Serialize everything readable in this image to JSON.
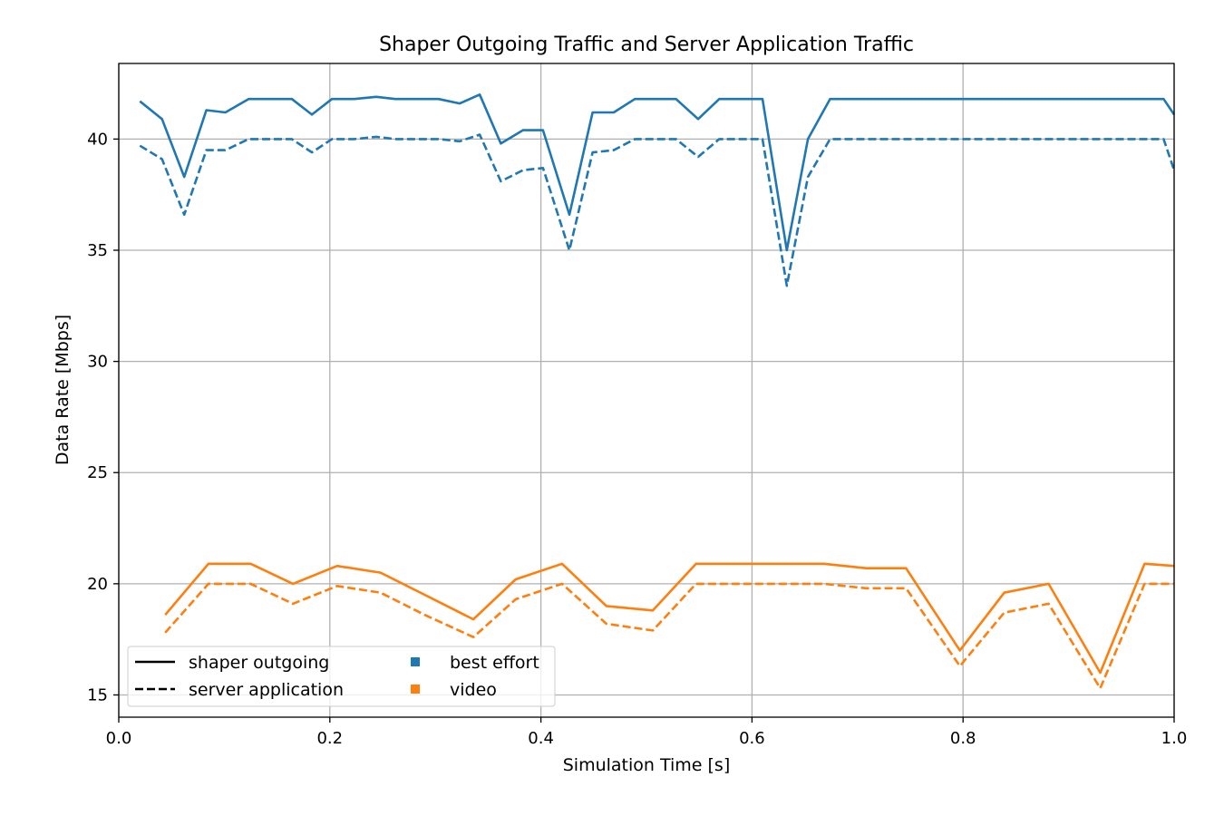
{
  "chart_data": {
    "type": "line",
    "title": "Shaper Outgoing Traffic and Server Application Traffic",
    "xlabel": "Simulation Time [s]",
    "ylabel": "Data Rate [Mbps]",
    "xlim": [
      0.0,
      1.0
    ],
    "ylim": [
      14.0,
      43.4
    ],
    "x_ticks": [
      0.0,
      0.2,
      0.4,
      0.6,
      0.8,
      1.0
    ],
    "x_tick_labels": [
      "0.0",
      "0.2",
      "0.4",
      "0.6",
      "0.8",
      "1.0"
    ],
    "y_ticks": [
      15,
      20,
      25,
      30,
      35,
      40
    ],
    "y_tick_labels": [
      "15",
      "20",
      "25",
      "30",
      "35",
      "40"
    ],
    "grid": true,
    "legend_placement": "lower-left",
    "legend": {
      "line_styles": [
        {
          "label": "shaper outgoing",
          "dash": "solid"
        },
        {
          "label": "server application",
          "dash": "dashed"
        }
      ],
      "categories": [
        {
          "label": "best effort",
          "color": "#1f77b4"
        },
        {
          "label": "video",
          "color": "#ff7f0e"
        }
      ]
    },
    "series": [
      {
        "category": "best effort",
        "style": "shaper outgoing",
        "color": "#1f77b4",
        "dash": "solid",
        "x": [
          0.02,
          0.041,
          0.062,
          0.083,
          0.101,
          0.123,
          0.145,
          0.164,
          0.183,
          0.202,
          0.223,
          0.244,
          0.262,
          0.282,
          0.303,
          0.323,
          0.342,
          0.362,
          0.383,
          0.402,
          0.427,
          0.449,
          0.469,
          0.489,
          0.508,
          0.528,
          0.549,
          0.569,
          0.589,
          0.61,
          0.633,
          0.653,
          0.674,
          0.7,
          0.75,
          0.8,
          0.815,
          0.84,
          0.9,
          0.95,
          0.99,
          1.0
        ],
        "y": [
          41.7,
          40.9,
          38.3,
          41.3,
          41.2,
          41.8,
          41.8,
          41.8,
          41.1,
          41.8,
          41.8,
          41.9,
          41.8,
          41.8,
          41.8,
          41.6,
          42.0,
          39.8,
          40.4,
          40.4,
          36.6,
          41.2,
          41.2,
          41.8,
          41.8,
          41.8,
          40.9,
          41.8,
          41.8,
          41.8,
          35.0,
          40.0,
          41.8,
          41.8,
          41.8,
          41.8,
          41.8,
          41.8,
          41.8,
          41.8,
          41.8,
          41.1
        ]
      },
      {
        "category": "best effort",
        "style": "server application",
        "color": "#1f77b4",
        "dash": "dashed",
        "x": [
          0.02,
          0.041,
          0.062,
          0.083,
          0.101,
          0.123,
          0.145,
          0.164,
          0.183,
          0.202,
          0.223,
          0.244,
          0.262,
          0.282,
          0.303,
          0.323,
          0.342,
          0.362,
          0.383,
          0.402,
          0.427,
          0.449,
          0.469,
          0.489,
          0.508,
          0.528,
          0.549,
          0.569,
          0.589,
          0.61,
          0.633,
          0.653,
          0.674,
          0.7,
          0.75,
          0.8,
          0.815,
          0.84,
          0.9,
          0.95,
          0.99,
          1.0
        ],
        "y": [
          39.7,
          39.1,
          36.6,
          39.5,
          39.5,
          40.0,
          40.0,
          40.0,
          39.4,
          40.0,
          40.0,
          40.1,
          40.0,
          40.0,
          40.0,
          39.9,
          40.2,
          38.1,
          38.6,
          38.7,
          35.0,
          39.4,
          39.5,
          40.0,
          40.0,
          40.0,
          39.2,
          40.0,
          40.0,
          40.0,
          33.4,
          38.3,
          40.0,
          40.0,
          40.0,
          40.0,
          40.0,
          40.0,
          40.0,
          40.0,
          40.0,
          38.6
        ]
      },
      {
        "category": "video",
        "style": "shaper outgoing",
        "color": "#ff7f0e",
        "dash": "solid",
        "x": [
          0.044,
          0.085,
          0.125,
          0.165,
          0.207,
          0.248,
          0.29,
          0.336,
          0.376,
          0.42,
          0.462,
          0.506,
          0.547,
          0.59,
          0.63,
          0.668,
          0.708,
          0.746,
          0.797,
          0.839,
          0.881,
          0.93,
          0.972,
          1.0
        ],
        "y": [
          18.6,
          20.9,
          20.9,
          20.0,
          20.8,
          20.5,
          19.5,
          18.4,
          20.2,
          20.9,
          19.0,
          18.8,
          20.9,
          20.9,
          20.9,
          20.9,
          20.7,
          20.7,
          17.0,
          19.6,
          20.0,
          16.0,
          20.9,
          20.8
        ]
      },
      {
        "category": "video",
        "style": "server application",
        "color": "#ff7f0e",
        "dash": "dashed",
        "x": [
          0.044,
          0.085,
          0.125,
          0.165,
          0.207,
          0.248,
          0.29,
          0.336,
          0.376,
          0.42,
          0.462,
          0.506,
          0.547,
          0.59,
          0.63,
          0.668,
          0.708,
          0.746,
          0.797,
          0.839,
          0.881,
          0.93,
          0.972,
          1.0
        ],
        "y": [
          17.8,
          20.0,
          20.0,
          19.1,
          19.9,
          19.6,
          18.6,
          17.6,
          19.3,
          20.0,
          18.2,
          17.9,
          20.0,
          20.0,
          20.0,
          20.0,
          19.8,
          19.8,
          16.3,
          18.7,
          19.1,
          15.3,
          20.0,
          20.0
        ]
      }
    ]
  }
}
